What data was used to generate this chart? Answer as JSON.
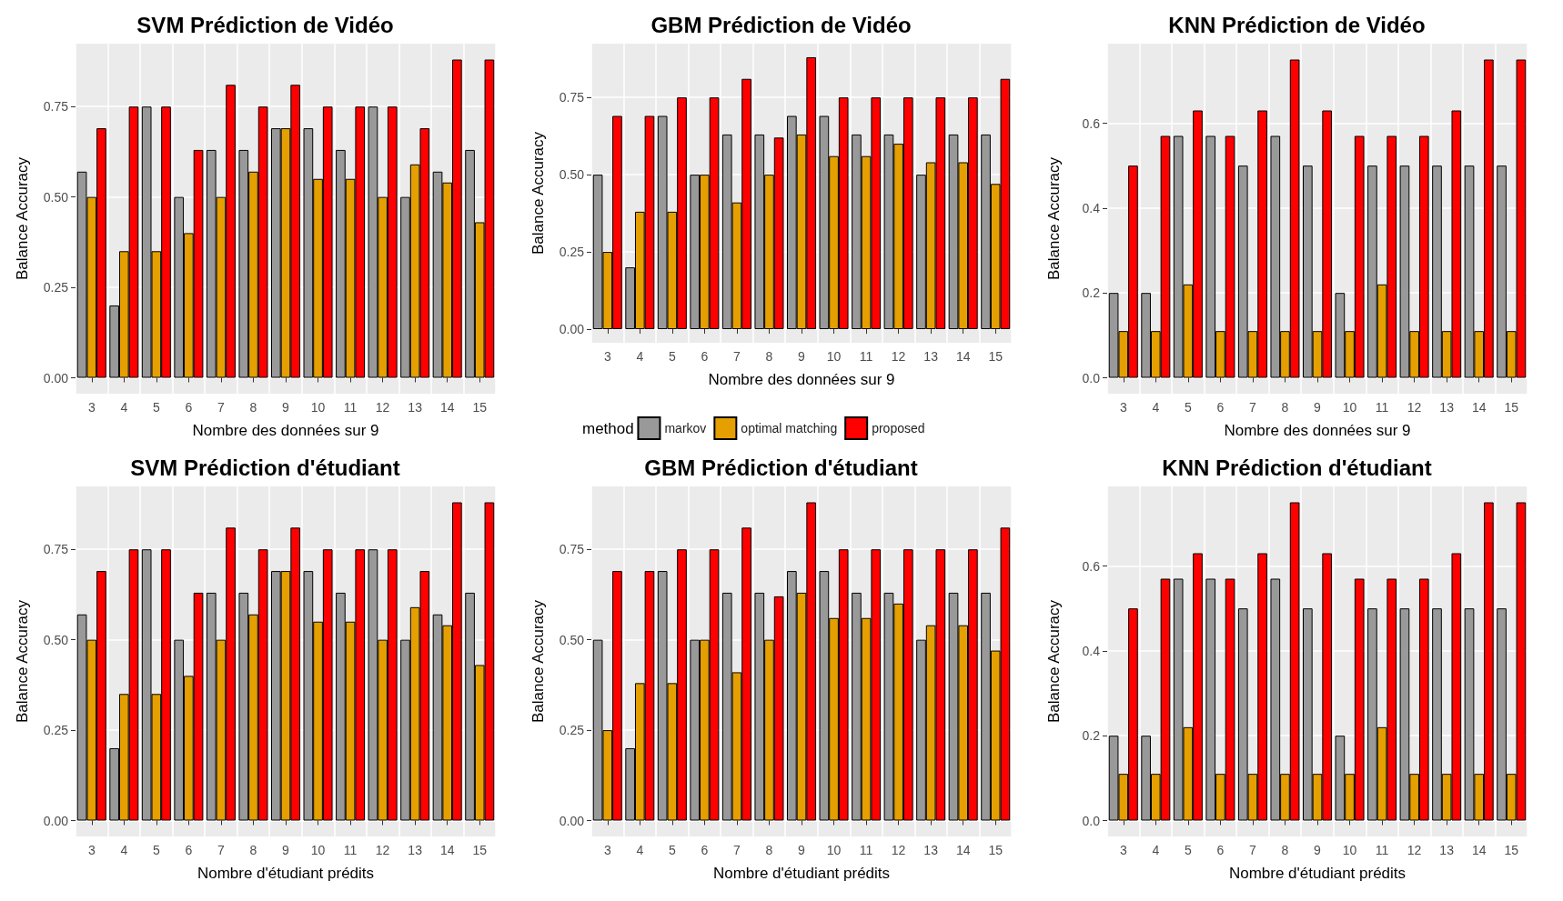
{
  "chart_data": [
    {
      "type": "bar",
      "title": "SVM Prédiction de Vidéo",
      "xlabel": "Nombre des données sur 9",
      "ylabel": "Balance Accuracy",
      "categories": [
        "3",
        "4",
        "5",
        "6",
        "7",
        "8",
        "9",
        "10",
        "11",
        "12",
        "13",
        "14",
        "15"
      ],
      "ylim": [
        -0.044,
        0.924
      ],
      "yticks": [
        {
          "value": 0,
          "label": "0.00"
        },
        {
          "value": 0.25,
          "label": "0.25"
        },
        {
          "value": 0.5,
          "label": "0.50"
        },
        {
          "value": 0.75,
          "label": "0.75"
        }
      ],
      "grid": true,
      "legend": false,
      "series": [
        {
          "color": "#999999",
          "values": [
            0.57,
            0.2,
            0.75,
            0.5,
            0.63,
            0.63,
            0.69,
            0.69,
            0.63,
            0.75,
            0.5,
            0.57,
            0.63
          ]
        },
        {
          "color": "#e69f00",
          "values": [
            0.5,
            0.35,
            0.35,
            0.4,
            0.5,
            0.57,
            0.69,
            0.55,
            0.55,
            0.5,
            0.59,
            0.54,
            0.43
          ]
        },
        {
          "color": "#ff0000",
          "values": [
            0.69,
            0.75,
            0.75,
            0.63,
            0.81,
            0.75,
            0.81,
            0.75,
            0.75,
            0.75,
            0.69,
            0.88,
            0.88
          ]
        }
      ]
    },
    {
      "type": "bar",
      "title": "GBM Prédiction de Vidéo",
      "xlabel": "Nombre des données sur 9",
      "ylabel": "Balance Accuracy",
      "categories": [
        "3",
        "4",
        "5",
        "6",
        "7",
        "8",
        "9",
        "10",
        "11",
        "12",
        "13",
        "14",
        "15"
      ],
      "ylim": [
        -0.044,
        0.924
      ],
      "yticks": [
        {
          "value": 0,
          "label": "0.00"
        },
        {
          "value": 0.25,
          "label": "0.25"
        },
        {
          "value": 0.5,
          "label": "0.50"
        },
        {
          "value": 0.75,
          "label": "0.75"
        }
      ],
      "grid": true,
      "legend": "bottom",
      "legend_title": "method",
      "series": [
        {
          "name": "markov",
          "color": "#999999",
          "values": [
            0.5,
            0.2,
            0.69,
            0.5,
            0.63,
            0.63,
            0.69,
            0.69,
            0.63,
            0.63,
            0.5,
            0.63,
            0.63
          ]
        },
        {
          "name": "optimal matching",
          "color": "#e69f00",
          "values": [
            0.25,
            0.38,
            0.38,
            0.5,
            0.41,
            0.5,
            0.63,
            0.56,
            0.56,
            0.6,
            0.54,
            0.54,
            0.47
          ]
        },
        {
          "name": "proposed",
          "color": "#ff0000",
          "values": [
            0.69,
            0.69,
            0.75,
            0.75,
            0.81,
            0.62,
            0.88,
            0.75,
            0.75,
            0.75,
            0.75,
            0.75,
            0.81
          ]
        }
      ]
    },
    {
      "type": "bar",
      "title": "KNN Prédiction de Vidéo",
      "xlabel": "Nombre des données sur 9",
      "ylabel": "Balance Accuracy",
      "categories": [
        "3",
        "4",
        "5",
        "6",
        "7",
        "8",
        "9",
        "10",
        "11",
        "12",
        "13",
        "14",
        "15"
      ],
      "ylim": [
        -0.0375,
        0.7875
      ],
      "yticks": [
        {
          "value": 0,
          "label": "0.0"
        },
        {
          "value": 0.2,
          "label": "0.2"
        },
        {
          "value": 0.4,
          "label": "0.4"
        },
        {
          "value": 0.6,
          "label": "0.6"
        }
      ],
      "grid": true,
      "legend": false,
      "series": [
        {
          "color": "#999999",
          "values": [
            0.2,
            0.2,
            0.57,
            0.57,
            0.5,
            0.57,
            0.5,
            0.2,
            0.5,
            0.5,
            0.5,
            0.5,
            0.5
          ]
        },
        {
          "color": "#e69f00",
          "values": [
            0.11,
            0.11,
            0.22,
            0.11,
            0.11,
            0.11,
            0.11,
            0.11,
            0.22,
            0.11,
            0.11,
            0.11,
            0.11
          ]
        },
        {
          "color": "#ff0000",
          "values": [
            0.5,
            0.57,
            0.63,
            0.57,
            0.63,
            0.75,
            0.63,
            0.57,
            0.57,
            0.57,
            0.63,
            0.75,
            0.75
          ]
        }
      ]
    },
    {
      "type": "bar",
      "title": "SVM Prédiction d'étudiant",
      "xlabel": "Nombre d'étudiant prédits",
      "ylabel": "Balance Accuracy",
      "categories": [
        "3",
        "4",
        "5",
        "6",
        "7",
        "8",
        "9",
        "10",
        "11",
        "12",
        "13",
        "14",
        "15"
      ],
      "ylim": [
        -0.044,
        0.924
      ],
      "yticks": [
        {
          "value": 0,
          "label": "0.00"
        },
        {
          "value": 0.25,
          "label": "0.25"
        },
        {
          "value": 0.5,
          "label": "0.50"
        },
        {
          "value": 0.75,
          "label": "0.75"
        }
      ],
      "grid": true,
      "legend": false,
      "series": [
        {
          "color": "#999999",
          "values": [
            0.57,
            0.2,
            0.75,
            0.5,
            0.63,
            0.63,
            0.69,
            0.69,
            0.63,
            0.75,
            0.5,
            0.57,
            0.63
          ]
        },
        {
          "color": "#e69f00",
          "values": [
            0.5,
            0.35,
            0.35,
            0.4,
            0.5,
            0.57,
            0.69,
            0.55,
            0.55,
            0.5,
            0.59,
            0.54,
            0.43
          ]
        },
        {
          "color": "#ff0000",
          "values": [
            0.69,
            0.75,
            0.75,
            0.63,
            0.81,
            0.75,
            0.81,
            0.75,
            0.75,
            0.75,
            0.69,
            0.88,
            0.88
          ]
        }
      ]
    },
    {
      "type": "bar",
      "title": "GBM Prédiction d'étudiant",
      "xlabel": "Nombre d'étudiant prédits",
      "ylabel": "Balance Accuracy",
      "categories": [
        "3",
        "4",
        "5",
        "6",
        "7",
        "8",
        "9",
        "10",
        "11",
        "12",
        "13",
        "14",
        "15"
      ],
      "ylim": [
        -0.044,
        0.924
      ],
      "yticks": [
        {
          "value": 0,
          "label": "0.00"
        },
        {
          "value": 0.25,
          "label": "0.25"
        },
        {
          "value": 0.5,
          "label": "0.50"
        },
        {
          "value": 0.75,
          "label": "0.75"
        }
      ],
      "grid": true,
      "legend": false,
      "series": [
        {
          "color": "#999999",
          "values": [
            0.5,
            0.2,
            0.69,
            0.5,
            0.63,
            0.63,
            0.69,
            0.69,
            0.63,
            0.63,
            0.5,
            0.63,
            0.63
          ]
        },
        {
          "color": "#e69f00",
          "values": [
            0.25,
            0.38,
            0.38,
            0.5,
            0.41,
            0.5,
            0.63,
            0.56,
            0.56,
            0.6,
            0.54,
            0.54,
            0.47
          ]
        },
        {
          "color": "#ff0000",
          "values": [
            0.69,
            0.69,
            0.75,
            0.75,
            0.81,
            0.62,
            0.88,
            0.75,
            0.75,
            0.75,
            0.75,
            0.75,
            0.81
          ]
        }
      ]
    },
    {
      "type": "bar",
      "title": "KNN Prédiction d'étudiant",
      "xlabel": "Nombre d'étudiant prédits",
      "ylabel": "Balance Accuracy",
      "categories": [
        "3",
        "4",
        "5",
        "6",
        "7",
        "8",
        "9",
        "10",
        "11",
        "12",
        "13",
        "14",
        "15"
      ],
      "ylim": [
        -0.0375,
        0.7875
      ],
      "yticks": [
        {
          "value": 0,
          "label": "0.0"
        },
        {
          "value": 0.2,
          "label": "0.2"
        },
        {
          "value": 0.4,
          "label": "0.4"
        },
        {
          "value": 0.6,
          "label": "0.6"
        }
      ],
      "grid": true,
      "legend": false,
      "series": [
        {
          "color": "#999999",
          "values": [
            0.2,
            0.2,
            0.57,
            0.57,
            0.5,
            0.57,
            0.5,
            0.2,
            0.5,
            0.5,
            0.5,
            0.5,
            0.5
          ]
        },
        {
          "color": "#e69f00",
          "values": [
            0.11,
            0.11,
            0.22,
            0.11,
            0.11,
            0.11,
            0.11,
            0.11,
            0.22,
            0.11,
            0.11,
            0.11,
            0.11
          ]
        },
        {
          "color": "#ff0000",
          "values": [
            0.5,
            0.57,
            0.63,
            0.57,
            0.63,
            0.75,
            0.63,
            0.57,
            0.57,
            0.57,
            0.63,
            0.75,
            0.75
          ]
        }
      ]
    }
  ]
}
